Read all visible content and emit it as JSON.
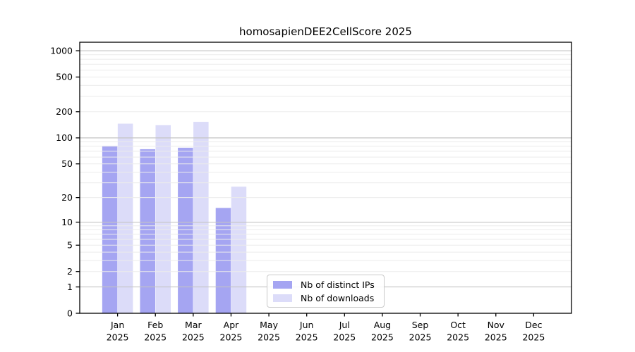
{
  "title": "homosapienDEE2CellScore 2025",
  "chart_data": {
    "type": "bar",
    "title": "homosapienDEE2CellScore 2025",
    "categories": [
      "Jan",
      "Feb",
      "Mar",
      "Apr",
      "May",
      "Jun",
      "Jul",
      "Aug",
      "Sep",
      "Oct",
      "Nov",
      "Dec"
    ],
    "x_year": "2025",
    "series": [
      {
        "name": "Nb of distinct IPs",
        "color": "#a5a5f2",
        "values": [
          81,
          74,
          77,
          15,
          0,
          0,
          0,
          0,
          0,
          0,
          0,
          0
        ]
      },
      {
        "name": "Nb of downloads",
        "color": "#dcdcf9",
        "values": [
          146,
          140,
          153,
          27,
          0,
          0,
          0,
          0,
          0,
          0,
          0,
          0
        ]
      }
    ],
    "y_axis": {
      "scale": "log1p",
      "ticks": [
        0,
        1,
        2,
        5,
        10,
        20,
        50,
        100,
        200,
        500,
        1000
      ],
      "range_top_value": 1240
    },
    "grid": {
      "major_values": [
        1,
        10,
        100,
        1000
      ],
      "minor_values": [
        2,
        3,
        4,
        5,
        6,
        7,
        8,
        9,
        20,
        30,
        40,
        50,
        60,
        70,
        80,
        90,
        200,
        300,
        400,
        500,
        600,
        700,
        800,
        900
      ],
      "major_color": "#c4c4c4",
      "minor_color": "#ebebeb"
    },
    "legend_position": "lower-center",
    "axis_color": "#000000",
    "background": "#ffffff"
  }
}
